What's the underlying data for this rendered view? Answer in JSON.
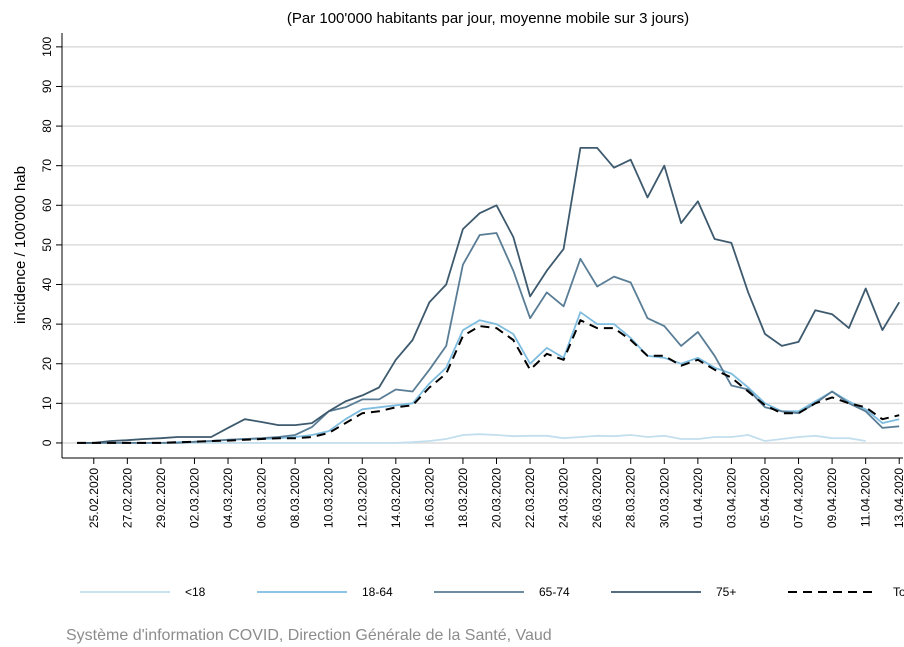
{
  "chart_data": {
    "type": "line",
    "title": "(Par 100'000 habitants par jour, moyenne mobile sur 3 jours)",
    "y_label": "incidence / 100'000 hab",
    "source": "Système d'information COVID, Direction Générale de la Santé, Vaud",
    "categories": [
      null,
      "25.02.2020",
      null,
      "27.02.2020",
      null,
      "29.02.2020",
      null,
      "02.03.2020",
      null,
      "04.03.2020",
      null,
      "06.03.2020",
      null,
      "08.03.2020",
      null,
      "10.03.2020",
      null,
      "12.03.2020",
      null,
      "14.03.2020",
      null,
      "16.03.2020",
      null,
      "18.03.2020",
      null,
      "20.03.2020",
      null,
      "22.03.2020",
      null,
      "24.03.2020",
      null,
      "26.03.2020",
      null,
      "28.03.2020",
      null,
      "30.03.2020",
      null,
      "01.04.2020",
      null,
      "03.04.2020",
      null,
      "05.04.2020",
      null,
      "07.04.2020",
      null,
      "09.04.2020",
      null,
      "11.04.2020",
      null,
      "13.04.2020"
    ],
    "series": [
      {
        "name": "<18",
        "color": "#c3dfee",
        "values": [
          0,
          0,
          0,
          0,
          0,
          0,
          0,
          0,
          0,
          0,
          0,
          0,
          0,
          0,
          0,
          0,
          0,
          0,
          0,
          0,
          0.2,
          0.5,
          1,
          2,
          2.2,
          2,
          1.7,
          1.8,
          1.8,
          1.2,
          1.5,
          1.8,
          1.7,
          2,
          1.5,
          1.8,
          1,
          1,
          1.5,
          1.5,
          2,
          0.5,
          1,
          1.5,
          1.8,
          1.2,
          1.2,
          0.5,
          null,
          null
        ]
      },
      {
        "name": "18-64",
        "color": "#7fbde0",
        "values": [
          0,
          0,
          0,
          0,
          0,
          0,
          0.2,
          0.3,
          0.5,
          0.8,
          1,
          1,
          1.2,
          1.5,
          2,
          3,
          6,
          8.5,
          9,
          9.5,
          10,
          15,
          19,
          28.5,
          31,
          30,
          27.5,
          20,
          24,
          21.5,
          33,
          30,
          30,
          26.5,
          22,
          21.5,
          20,
          21.5,
          19,
          17.5,
          14,
          10,
          8,
          8,
          10.5,
          13,
          10.5,
          8.5,
          5,
          6
        ]
      },
      {
        "name": "65-74",
        "color": "#5a7d96",
        "values": [
          0,
          0,
          0,
          0,
          0,
          0,
          0,
          0.3,
          0.5,
          0.8,
          1,
          1.2,
          1.5,
          2,
          4,
          8,
          9,
          11,
          11,
          13.5,
          13,
          18.5,
          24.5,
          45,
          52.5,
          53,
          43.5,
          31.5,
          38,
          34.5,
          46.5,
          39.5,
          42,
          40.5,
          31.5,
          29.5,
          24.5,
          28,
          22,
          14.5,
          13.5,
          9,
          8,
          7.5,
          10,
          13,
          10,
          8,
          3.8,
          4.2
        ]
      },
      {
        "name": "75+",
        "color": "#3e5a6e",
        "values": [
          0,
          0,
          0.5,
          0.7,
          1,
          1.2,
          1.5,
          1.5,
          1.5,
          3.8,
          6,
          5.3,
          4.5,
          4.5,
          5,
          8,
          10.5,
          12,
          14,
          21,
          26,
          35.5,
          40,
          54,
          58,
          60,
          52,
          37,
          43.5,
          49,
          74.5,
          74.5,
          69.5,
          71.5,
          62,
          70,
          55.5,
          61,
          51.5,
          50.5,
          38,
          27.5,
          24.5,
          25.5,
          33.5,
          32.5,
          29,
          39,
          28.5,
          35.5
        ]
      },
      {
        "name": "Total",
        "color": "#000000",
        "dashed": true,
        "values": [
          0,
          0,
          0,
          0,
          0,
          0,
          0.2,
          0.3,
          0.5,
          0.6,
          0.8,
          1,
          1.2,
          1.2,
          1.5,
          2.5,
          5,
          7.5,
          8,
          9,
          9.5,
          14,
          17.5,
          27,
          29.5,
          29,
          26,
          18.5,
          22.5,
          21,
          31,
          29,
          29,
          26,
          22,
          22,
          19.5,
          21,
          18.5,
          16.5,
          13,
          9.5,
          7.5,
          7.5,
          10,
          11.5,
          10,
          9,
          6,
          7
        ]
      }
    ],
    "ylim": [
      -3.8,
      103.5
    ],
    "yticks": [
      0,
      10,
      20,
      30,
      40,
      50,
      60,
      70,
      80,
      90,
      100
    ],
    "grid": true
  }
}
